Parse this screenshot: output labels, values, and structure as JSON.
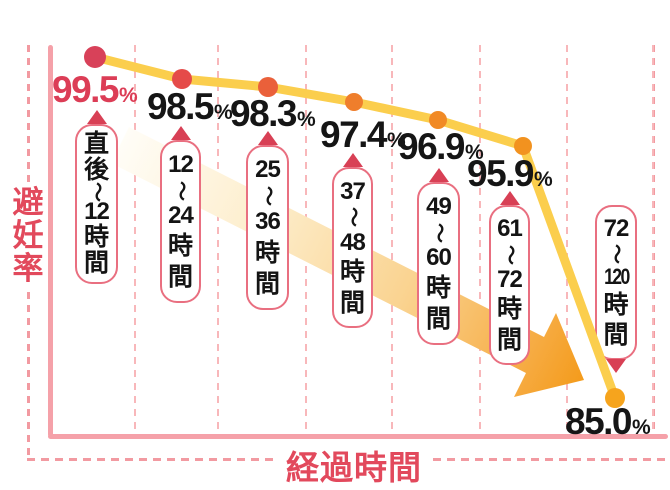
{
  "chart_data": {
    "type": "line",
    "title": "",
    "xlabel": "経過時間",
    "ylabel": "避妊率",
    "categories": [
      "直後～12時間",
      "12～24時間",
      "25～36時間",
      "37～48時間",
      "49～60時間",
      "61～72時間",
      "72～120時間"
    ],
    "categories_vertical": [
      [
        "直",
        "後",
        "～",
        "12",
        "時",
        "間"
      ],
      [
        "12",
        "～",
        "24",
        "時",
        "間"
      ],
      [
        "25",
        "～",
        "36",
        "時",
        "間"
      ],
      [
        "37",
        "～",
        "48",
        "時",
        "間"
      ],
      [
        "49",
        "～",
        "60",
        "時",
        "間"
      ],
      [
        "61",
        "～",
        "72",
        "時",
        "間"
      ],
      [
        "72",
        "～",
        "120",
        "時",
        "間"
      ]
    ],
    "values": [
      99.5,
      98.5,
      98.3,
      97.4,
      96.9,
      95.9,
      85.0
    ],
    "value_labels": [
      "99.5",
      "98.5",
      "98.3",
      "97.4",
      "96.9",
      "95.9",
      "85.0"
    ],
    "unit": "%",
    "legend": "none",
    "grid": "vertical-dashed",
    "annotations": "large orange gradient arrow sloping down to the right behind the labels",
    "colors": {
      "line": "#FBCE4D",
      "dots": [
        "#D84159",
        "#E54B49",
        "#EA603A",
        "#EF7E2C",
        "#F18A25",
        "#F2921F",
        "#F6A41D"
      ],
      "value_label_colors": [
        "#DC3D56",
        "#151515",
        "#151515",
        "#151515",
        "#151515",
        "#151515",
        "#151515"
      ],
      "pill_border": "#E96F80",
      "pointer_triangle": "#D84055",
      "axis_solid": "#F5A1A9",
      "gridline_dash": "#F8B7BA",
      "frame_dash": "#F29AA1",
      "axis_title": "#E2495C",
      "arrow_gradient": [
        "#FFFDF7",
        "#FDEECD",
        "#FAD390",
        "#F49B1B"
      ]
    }
  }
}
